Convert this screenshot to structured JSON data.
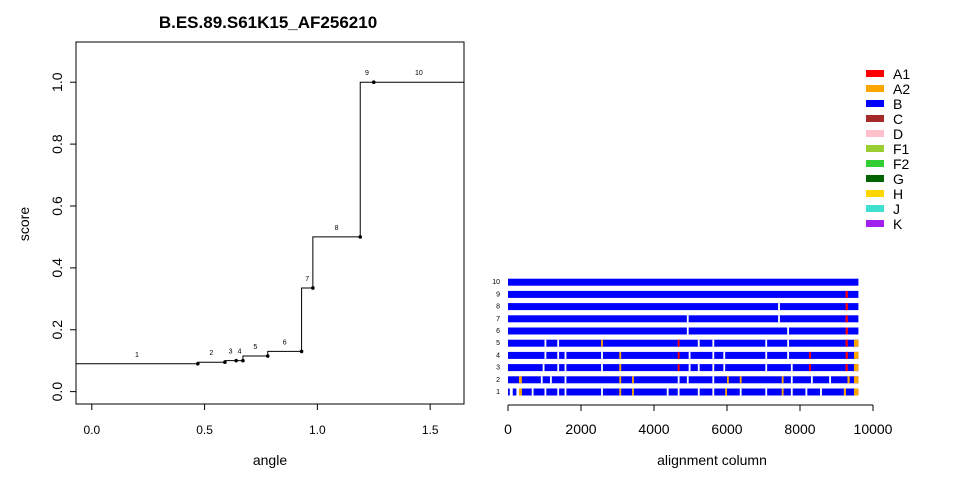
{
  "chart_data": [
    {
      "type": "line",
      "title": "B.ES.89.S61K15_AF256210",
      "xlabel": "angle",
      "ylabel": "score",
      "xlim": [
        -0.07,
        1.65
      ],
      "ylim": [
        -0.04,
        1.13
      ],
      "xticks": [
        "0.0",
        "0.5",
        "1.0",
        "1.5"
      ],
      "yticks": [
        "0.0",
        "0.2",
        "0.4",
        "0.6",
        "0.8",
        "1.0"
      ],
      "grid": false,
      "legend": "none",
      "series": [
        {
          "points": [
            {
              "label": "1",
              "x": 0.47,
              "y": 0.09
            },
            {
              "label": "2",
              "x": 0.59,
              "y": 0.095
            },
            {
              "label": "3",
              "x": 0.64,
              "y": 0.1
            },
            {
              "label": "4",
              "x": 0.67,
              "y": 0.1
            },
            {
              "label": "5",
              "x": 0.78,
              "y": 0.115
            },
            {
              "label": "6",
              "x": 0.93,
              "y": 0.13
            },
            {
              "label": "7",
              "x": 0.98,
              "y": 0.335
            },
            {
              "label": "8",
              "x": 1.19,
              "y": 0.5
            },
            {
              "label": "9",
              "x": 1.25,
              "y": 1.0
            },
            {
              "label": "10",
              "x": 1.65,
              "y": 1.0
            }
          ]
        }
      ]
    },
    {
      "type": "heatmap",
      "xlabel": "alignment column",
      "xlim": [
        0,
        10000
      ],
      "xticks": [
        "0",
        "2000",
        "4000",
        "6000",
        "8000",
        "10000"
      ],
      "row_labels": [
        "1",
        "2",
        "3",
        "4",
        "5",
        "6",
        "7",
        "8",
        "9",
        "10"
      ],
      "track_end": 9600,
      "base_color": "#0000ff",
      "legend": "top-right",
      "legend_items": [
        {
          "label": "A1",
          "color": "#ff0000"
        },
        {
          "label": "A2",
          "color": "#ffa500"
        },
        {
          "label": "B",
          "color": "#0000ff"
        },
        {
          "label": "C",
          "color": "#a52a2a"
        },
        {
          "label": "D",
          "color": "#ffc0cb"
        },
        {
          "label": "F1",
          "color": "#9acd32"
        },
        {
          "label": "F2",
          "color": "#32cd32"
        },
        {
          "label": "G",
          "color": "#006400"
        },
        {
          "label": "H",
          "color": "#ffd700"
        },
        {
          "label": "J",
          "color": "#40e0d0"
        },
        {
          "label": "K",
          "color": "#a020f0"
        }
      ],
      "rows": [
        {
          "label": "1",
          "segments": [
            {
              "start": 50,
              "end": 130,
              "color": "#ffffff"
            },
            {
              "start": 230,
              "end": 320,
              "color": "#ffffff"
            },
            {
              "start": 300,
              "end": 380,
              "color": "#ffa500"
            },
            {
              "start": 650,
              "end": 700,
              "color": "#ffffff"
            },
            {
              "start": 1000,
              "end": 1050,
              "color": "#ffffff"
            },
            {
              "start": 1350,
              "end": 1400,
              "color": "#ffffff"
            },
            {
              "start": 1550,
              "end": 1600,
              "color": "#ffffff"
            },
            {
              "start": 2550,
              "end": 2600,
              "color": "#ffffff"
            },
            {
              "start": 3050,
              "end": 3100,
              "color": "#ffa500"
            },
            {
              "start": 3400,
              "end": 3450,
              "color": "#ffa500"
            },
            {
              "start": 4350,
              "end": 4400,
              "color": "#ffffff"
            },
            {
              "start": 4650,
              "end": 4700,
              "color": "#ffffff"
            },
            {
              "start": 5200,
              "end": 5250,
              "color": "#ffffff"
            },
            {
              "start": 5600,
              "end": 5650,
              "color": "#ffffff"
            },
            {
              "start": 5950,
              "end": 6000,
              "color": "#ffa500"
            },
            {
              "start": 6350,
              "end": 6400,
              "color": "#ffffff"
            },
            {
              "start": 7050,
              "end": 7100,
              "color": "#ffffff"
            },
            {
              "start": 7500,
              "end": 7550,
              "color": "#ffa500"
            },
            {
              "start": 7750,
              "end": 7800,
              "color": "#ffffff"
            },
            {
              "start": 8150,
              "end": 8200,
              "color": "#ffffff"
            },
            {
              "start": 8550,
              "end": 8600,
              "color": "#ffffff"
            },
            {
              "start": 9200,
              "end": 9260,
              "color": "#ffa500"
            },
            {
              "start": 9480,
              "end": 9600,
              "color": "#ffa500"
            }
          ]
        },
        {
          "label": "2",
          "segments": [
            {
              "start": 300,
              "end": 380,
              "color": "#ffa500"
            },
            {
              "start": 900,
              "end": 950,
              "color": "#ffffff"
            },
            {
              "start": 1150,
              "end": 1200,
              "color": "#ffffff"
            },
            {
              "start": 1550,
              "end": 1600,
              "color": "#ffffff"
            },
            {
              "start": 3050,
              "end": 3100,
              "color": "#ffa500"
            },
            {
              "start": 3400,
              "end": 3450,
              "color": "#ffa500"
            },
            {
              "start": 4650,
              "end": 4700,
              "color": "#ffffff"
            },
            {
              "start": 4900,
              "end": 4950,
              "color": "#ffffff"
            },
            {
              "start": 5600,
              "end": 5650,
              "color": "#ffffff"
            },
            {
              "start": 6000,
              "end": 6050,
              "color": "#ffa500"
            },
            {
              "start": 6350,
              "end": 6400,
              "color": "#ffa500"
            },
            {
              "start": 7500,
              "end": 7550,
              "color": "#ffa500"
            },
            {
              "start": 7750,
              "end": 7800,
              "color": "#ffffff"
            },
            {
              "start": 8300,
              "end": 8350,
              "color": "#ffffff"
            },
            {
              "start": 8800,
              "end": 8850,
              "color": "#ffffff"
            },
            {
              "start": 9300,
              "end": 9360,
              "color": "#ffa500"
            },
            {
              "start": 9480,
              "end": 9600,
              "color": "#ffa500"
            }
          ]
        },
        {
          "label": "3",
          "segments": [
            {
              "start": 950,
              "end": 1000,
              "color": "#ffffff"
            },
            {
              "start": 1350,
              "end": 1400,
              "color": "#ffffff"
            },
            {
              "start": 1550,
              "end": 1600,
              "color": "#ffffff"
            },
            {
              "start": 2550,
              "end": 2600,
              "color": "#ffffff"
            },
            {
              "start": 3050,
              "end": 3100,
              "color": "#ffa500"
            },
            {
              "start": 4650,
              "end": 4700,
              "color": "#ff0000"
            },
            {
              "start": 4950,
              "end": 5000,
              "color": "#ffffff"
            },
            {
              "start": 5200,
              "end": 5250,
              "color": "#ffffff"
            },
            {
              "start": 5600,
              "end": 5650,
              "color": "#ffffff"
            },
            {
              "start": 5900,
              "end": 5950,
              "color": "#ffffff"
            },
            {
              "start": 7050,
              "end": 7100,
              "color": "#ffffff"
            },
            {
              "start": 7750,
              "end": 7800,
              "color": "#ffffff"
            },
            {
              "start": 8250,
              "end": 8300,
              "color": "#ff0000"
            },
            {
              "start": 9250,
              "end": 9310,
              "color": "#ff0000"
            },
            {
              "start": 9480,
              "end": 9600,
              "color": "#ffa500"
            }
          ]
        },
        {
          "label": "4",
          "segments": [
            {
              "start": 1000,
              "end": 1050,
              "color": "#ffffff"
            },
            {
              "start": 1350,
              "end": 1400,
              "color": "#ffffff"
            },
            {
              "start": 1550,
              "end": 1600,
              "color": "#ffffff"
            },
            {
              "start": 2550,
              "end": 2600,
              "color": "#ffffff"
            },
            {
              "start": 3050,
              "end": 3100,
              "color": "#ffa500"
            },
            {
              "start": 4650,
              "end": 4700,
              "color": "#ff0000"
            },
            {
              "start": 4950,
              "end": 5000,
              "color": "#ffffff"
            },
            {
              "start": 5600,
              "end": 5650,
              "color": "#ffffff"
            },
            {
              "start": 5900,
              "end": 5950,
              "color": "#ffffff"
            },
            {
              "start": 7050,
              "end": 7100,
              "color": "#ffffff"
            },
            {
              "start": 7650,
              "end": 7700,
              "color": "#ffffff"
            },
            {
              "start": 8250,
              "end": 8300,
              "color": "#ff0000"
            },
            {
              "start": 9250,
              "end": 9310,
              "color": "#ff0000"
            },
            {
              "start": 9480,
              "end": 9600,
              "color": "#ffa500"
            }
          ]
        },
        {
          "label": "5",
          "segments": [
            {
              "start": 1000,
              "end": 1050,
              "color": "#ffffff"
            },
            {
              "start": 1350,
              "end": 1400,
              "color": "#ffffff"
            },
            {
              "start": 2550,
              "end": 2600,
              "color": "#ffa500"
            },
            {
              "start": 4650,
              "end": 4700,
              "color": "#ff0000"
            },
            {
              "start": 5200,
              "end": 5250,
              "color": "#ffffff"
            },
            {
              "start": 5600,
              "end": 5650,
              "color": "#ffffff"
            },
            {
              "start": 7050,
              "end": 7100,
              "color": "#ffffff"
            },
            {
              "start": 7650,
              "end": 7700,
              "color": "#ffffff"
            },
            {
              "start": 9250,
              "end": 9310,
              "color": "#ff0000"
            },
            {
              "start": 9480,
              "end": 9600,
              "color": "#ffa500"
            }
          ]
        },
        {
          "label": "6",
          "segments": [
            {
              "start": 4900,
              "end": 4950,
              "color": "#ffffff"
            },
            {
              "start": 7650,
              "end": 7700,
              "color": "#ffffff"
            },
            {
              "start": 9250,
              "end": 9310,
              "color": "#ff0000"
            }
          ]
        },
        {
          "label": "7",
          "segments": [
            {
              "start": 4900,
              "end": 4950,
              "color": "#ffffff"
            },
            {
              "start": 7400,
              "end": 7450,
              "color": "#ffffff"
            },
            {
              "start": 9250,
              "end": 9310,
              "color": "#ff0000"
            }
          ]
        },
        {
          "label": "8",
          "segments": [
            {
              "start": 7400,
              "end": 7450,
              "color": "#ffffff"
            },
            {
              "start": 9250,
              "end": 9310,
              "color": "#ff0000"
            }
          ]
        },
        {
          "label": "9",
          "segments": [
            {
              "start": 9250,
              "end": 9310,
              "color": "#ff0000"
            }
          ]
        },
        {
          "label": "10",
          "segments": []
        }
      ]
    }
  ]
}
